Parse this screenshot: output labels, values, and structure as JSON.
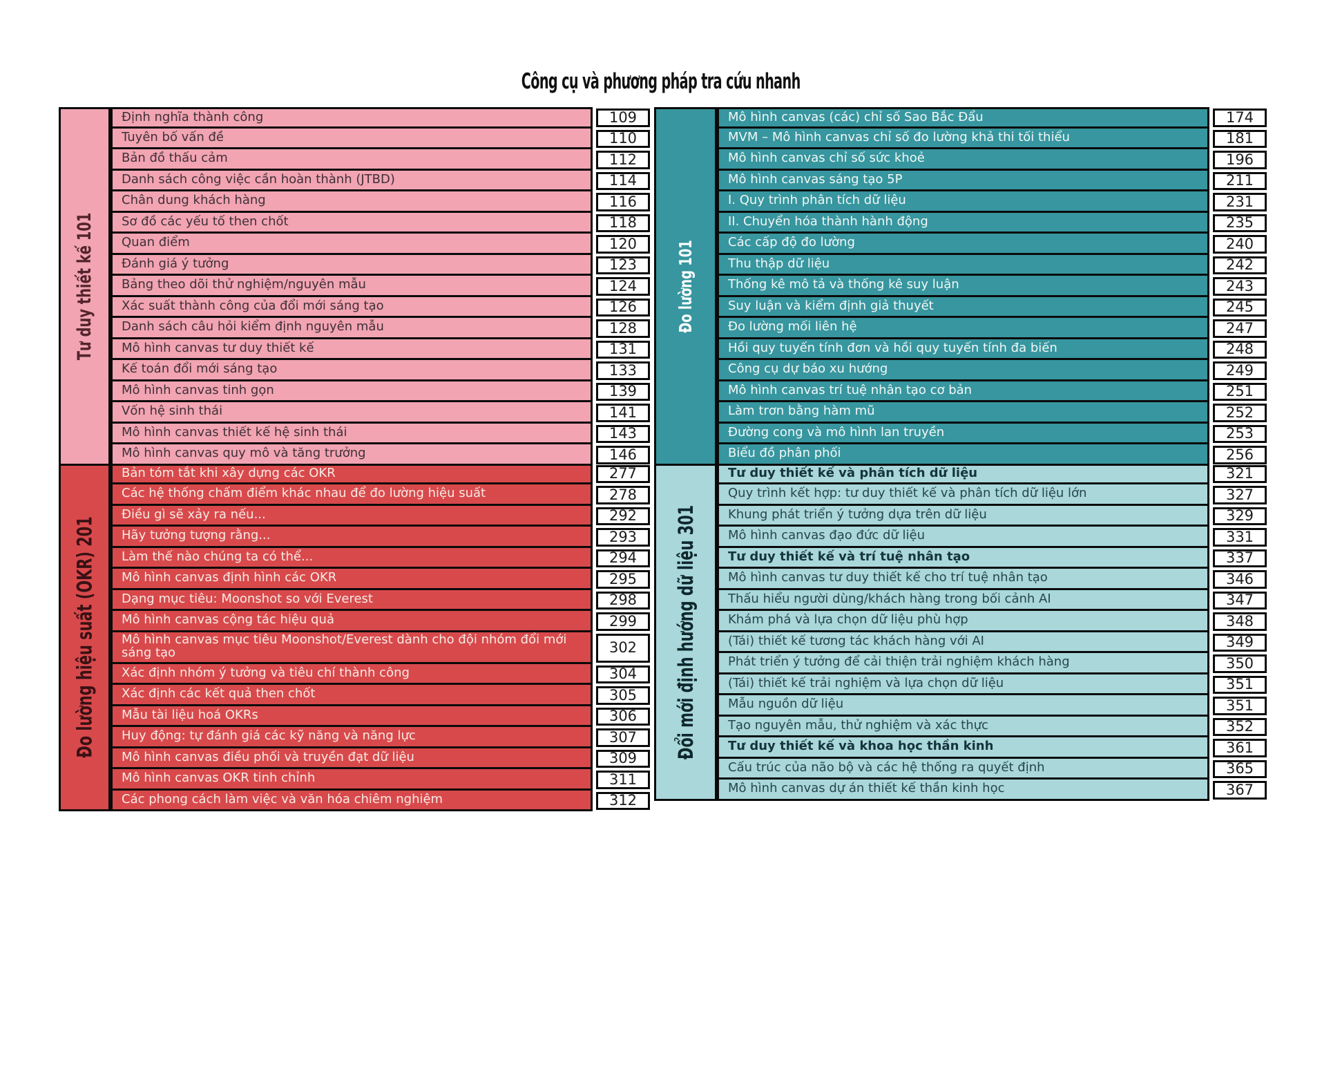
{
  "title": "Công cụ và phương pháp tra cứu nhanh",
  "sections": [
    {
      "id": "design-thinking-101",
      "label": "Tư duy thiết kế 101",
      "colors": {
        "bg": "#f2a4b2",
        "text": "#3f3038",
        "label_bg": "#f2a4b2",
        "label_text": "#53242d",
        "bold_text": "#3f3038"
      },
      "items": [
        {
          "text": "Định nghĩa thành công",
          "page": "109"
        },
        {
          "text": "Tuyên bố vấn đề",
          "page": "110"
        },
        {
          "text": "Bản đồ thấu cảm",
          "page": "112"
        },
        {
          "text": "Danh sách công việc cần hoàn thành (JTBD)",
          "page": "114"
        },
        {
          "text": "Chân dung khách hàng",
          "page": "116"
        },
        {
          "text": "Sơ đồ các yếu tố then chốt",
          "page": "118"
        },
        {
          "text": "Quan điểm",
          "page": "120"
        },
        {
          "text": "Đánh giá ý tưởng",
          "page": "123"
        },
        {
          "text": "Bảng theo dõi thử nghiệm/nguyên mẫu",
          "page": "124"
        },
        {
          "text": "Xác suất thành công của đổi mới sáng tạo",
          "page": "126"
        },
        {
          "text": "Danh sách câu hỏi kiểm định nguyên mẫu",
          "page": "128"
        },
        {
          "text": "Mô hình canvas tư duy thiết kế",
          "page": "131"
        },
        {
          "text": "Kế toán đổi mới sáng tạo",
          "page": "133"
        },
        {
          "text": "Mô hình canvas tinh gọn",
          "page": "139"
        },
        {
          "text": "Vốn hệ sinh thái",
          "page": "141"
        },
        {
          "text": "Mô hình canvas thiết kế hệ sinh thái",
          "page": "143"
        },
        {
          "text": "Mô hình canvas quy mô và tăng trưởng",
          "page": "146"
        }
      ]
    },
    {
      "id": "measurement-101",
      "label": "Đo lường 101",
      "colors": {
        "bg": "#37969f",
        "text": "#f2f7f5",
        "label_bg": "#37969f",
        "label_text": "#ffffff",
        "bold_text": "#ffffff"
      },
      "items": [
        {
          "text": "Mô hình canvas (các) chỉ số Sao Bắc Đẩu",
          "page": "174"
        },
        {
          "text": "MVM – Mô hình canvas chỉ số đo lường khả thi tối thiểu",
          "page": "181"
        },
        {
          "text": "Mô hình canvas chỉ số sức khoẻ",
          "page": "196"
        },
        {
          "text": "Mô hình canvas sáng tạo 5P",
          "page": "211"
        },
        {
          "text": "I. Quy trình phân tích dữ liệu",
          "page": "231"
        },
        {
          "text": "II. Chuyển hóa thành hành động",
          "page": "235"
        },
        {
          "text": "Các cấp độ đo lường",
          "page": "240"
        },
        {
          "text": "Thu thập dữ liệu",
          "page": "242"
        },
        {
          "text": "Thống kê mô tả và thống kê suy luận",
          "page": "243"
        },
        {
          "text": "Suy luận và kiểm định giả thuyết",
          "page": "245"
        },
        {
          "text": "Đo lường mối liên hệ",
          "page": "247"
        },
        {
          "text": "Hồi quy tuyến tính đơn và hồi quy tuyến tính đa biến",
          "page": "248"
        },
        {
          "text": "Công cụ dự báo xu hướng",
          "page": "249"
        },
        {
          "text": "Mô hình canvas trí tuệ nhân tạo cơ bản",
          "page": "251"
        },
        {
          "text": "Làm trơn bằng hàm mũ",
          "page": "252"
        },
        {
          "text": "Đường cong và mô hình lan truyền",
          "page": "253"
        },
        {
          "text": "Biểu đồ phân phối",
          "page": "256"
        }
      ]
    },
    {
      "id": "performance-measurement-okr-201",
      "label": "Đo lường hiệu suất (OKR) 201",
      "colors": {
        "bg": "#d8494c",
        "text": "#f6ebe4",
        "label_bg": "#d8494c",
        "label_text": "#391114",
        "bold_text": "#f6ebe4"
      },
      "items": [
        {
          "text": "Bản tóm tắt khi xây dựng các OKR",
          "page": "277"
        },
        {
          "text": "Các hệ thống chấm điểm khác nhau để đo lường hiệu suất",
          "page": "278"
        },
        {
          "text": "Điều gì sẽ xảy ra nếu...",
          "page": "292"
        },
        {
          "text": "Hãy tưởng tượng rằng...",
          "page": "293"
        },
        {
          "text": "Làm thế nào chúng ta có thể...",
          "page": "294"
        },
        {
          "text": "Mô hình canvas định hình các OKR",
          "page": "295"
        },
        {
          "text": "Dạng mục tiêu: Moonshot so với Everest",
          "page": "298"
        },
        {
          "text": "Mô hình canvas cộng tác hiệu quả",
          "page": "299"
        },
        {
          "text": "Mô hình canvas mục tiêu Moonshot/Everest dành cho đội nhóm đổi mới  sáng tạo",
          "page": "302",
          "tall": true
        },
        {
          "text": "Xác định nhóm ý tưởng và tiêu chí thành công",
          "page": "304"
        },
        {
          "text": "Xác định các kết quả then chốt",
          "page": "305"
        },
        {
          "text": "Mẫu tài liệu hoá OKRs",
          "page": "306"
        },
        {
          "text": "Huy động: tự đánh giá các kỹ năng và năng lực",
          "page": "307"
        },
        {
          "text": "Mô hình canvas điều phối và truyền đạt dữ liệu",
          "page": "309"
        },
        {
          "text": "Mô hình canvas OKR tinh chỉnh",
          "page": "311"
        },
        {
          "text": "Các phong cách làm việc và văn hóa chiêm nghiệm",
          "page": "312"
        }
      ]
    },
    {
      "id": "data-driven-innovation-301",
      "label": "Đổi mới định hướng dữ liệu 301",
      "colors": {
        "bg": "#a9d7da",
        "text": "#27454c",
        "label_bg": "#a9d7da",
        "label_text": "#0f272c",
        "bold_text": "#15343b"
      },
      "items": [
        {
          "text": "Tư duy thiết kế và phân tích dữ liệu",
          "page": "321",
          "bold": true
        },
        {
          "text": "Quy trình kết hợp: tư duy thiết kế và phân tích dữ liệu lớn",
          "page": "327"
        },
        {
          "text": "Khung phát triển ý tưởng dựa trên dữ liệu",
          "page": "329"
        },
        {
          "text": "Mô hình canvas đạo đức dữ liệu",
          "page": "331"
        },
        {
          "text": "Tư duy thiết kế và trí tuệ nhân tạo",
          "page": "337",
          "bold": true
        },
        {
          "text": "Mô hình canvas tư duy thiết kế cho trí tuệ nhân tạo",
          "page": "346"
        },
        {
          "text": "Thấu hiểu người dùng/khách hàng trong bối cảnh AI",
          "page": "347"
        },
        {
          "text": "Khám phá và lựa chọn dữ liệu phù hợp",
          "page": "348"
        },
        {
          "text": "(Tái) thiết kế tương tác khách hàng với AI",
          "page": "349"
        },
        {
          "text": "Phát triển ý tưởng để cải thiện trải nghiệm khách hàng",
          "page": "350"
        },
        {
          "text": "(Tái) thiết kế trải nghiệm và lựa chọn dữ liệu",
          "page": "351"
        },
        {
          "text": "Mẫu nguồn dữ liệu",
          "page": "351"
        },
        {
          "text": "Tạo nguyên mẫu, thử nghiệm và xác thực",
          "page": "352"
        },
        {
          "text": "Tư duy thiết kế và khoa học thần kinh",
          "page": "361",
          "bold": true
        },
        {
          "text": "Cấu trúc của não bộ và các hệ thống ra quyết định",
          "page": "365"
        },
        {
          "text": "Mô hình canvas dự án thiết kế thần kinh học",
          "page": "367"
        }
      ]
    }
  ]
}
